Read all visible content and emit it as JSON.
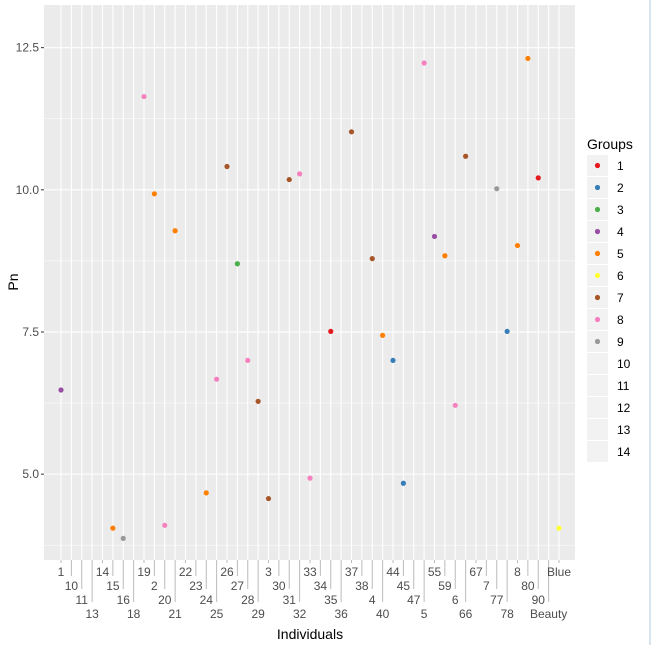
{
  "chart_data": {
    "type": "scatter",
    "title": "",
    "xlabel": "Individuals",
    "ylabel": "Pn",
    "ylim": [
      3.49,
      13.25
    ],
    "yticks": [
      5.0,
      7.5,
      10.0,
      12.5
    ],
    "ytick_labels": [
      "5.0",
      "7.5",
      "10.0",
      "12.5"
    ],
    "grid": true,
    "legend": {
      "title": "Groups",
      "placement": "right",
      "entries": [
        "1",
        "2",
        "3",
        "4",
        "5",
        "6",
        "7",
        "8",
        "9",
        "10",
        "11",
        "12",
        "13",
        "14"
      ]
    },
    "colors": {
      "1": "#E41A1C",
      "2": "#377EB8",
      "3": "#4DAF4A",
      "4": "#984EA3",
      "5": "#FF7F00",
      "6": "#FFFF33",
      "7": "#A65628",
      "8": "#F781BF",
      "9": "#999999"
    },
    "categories": [
      "1",
      "10",
      "11",
      "13",
      "14",
      "15",
      "16",
      "18",
      "19",
      "2",
      "20",
      "21",
      "22",
      "23",
      "24",
      "25",
      "26",
      "27",
      "28",
      "29",
      "3",
      "30",
      "31",
      "32",
      "33",
      "34",
      "35",
      "36",
      "37",
      "38",
      "4",
      "40",
      "44",
      "45",
      "47",
      "5",
      "55",
      "59",
      "6",
      "66",
      "67",
      "7",
      "77",
      "78",
      "8",
      "80",
      "90",
      "Beauty",
      "Blue"
    ],
    "points": [
      {
        "x": 0,
        "y": 6.48,
        "group": "4"
      },
      {
        "x": 5,
        "y": 4.05,
        "group": "5"
      },
      {
        "x": 6,
        "y": 3.87,
        "group": "9"
      },
      {
        "x": 8,
        "y": 11.64,
        "group": "8"
      },
      {
        "x": 9,
        "y": 9.93,
        "group": "5"
      },
      {
        "x": 10,
        "y": 4.1,
        "group": "8"
      },
      {
        "x": 11,
        "y": 9.28,
        "group": "5"
      },
      {
        "x": 14,
        "y": 4.67,
        "group": "5"
      },
      {
        "x": 15,
        "y": 6.67,
        "group": "8"
      },
      {
        "x": 16,
        "y": 10.41,
        "group": "7"
      },
      {
        "x": 17,
        "y": 8.7,
        "group": "3"
      },
      {
        "x": 18,
        "y": 7.0,
        "group": "8"
      },
      {
        "x": 19,
        "y": 6.28,
        "group": "7"
      },
      {
        "x": 20,
        "y": 4.57,
        "group": "7"
      },
      {
        "x": 22,
        "y": 10.18,
        "group": "7"
      },
      {
        "x": 23,
        "y": 10.28,
        "group": "8"
      },
      {
        "x": 24,
        "y": 4.93,
        "group": "8"
      },
      {
        "x": 26,
        "y": 7.51,
        "group": "1"
      },
      {
        "x": 28,
        "y": 11.02,
        "group": "7"
      },
      {
        "x": 30,
        "y": 8.79,
        "group": "7"
      },
      {
        "x": 31,
        "y": 7.44,
        "group": "5"
      },
      {
        "x": 32,
        "y": 7.0,
        "group": "2"
      },
      {
        "x": 33,
        "y": 4.84,
        "group": "2"
      },
      {
        "x": 35,
        "y": 12.23,
        "group": "8"
      },
      {
        "x": 36,
        "y": 9.18,
        "group": "4"
      },
      {
        "x": 37,
        "y": 8.84,
        "group": "5"
      },
      {
        "x": 38,
        "y": 6.21,
        "group": "8"
      },
      {
        "x": 39,
        "y": 10.59,
        "group": "7"
      },
      {
        "x": 42,
        "y": 10.02,
        "group": "9"
      },
      {
        "x": 43,
        "y": 7.51,
        "group": "2"
      },
      {
        "x": 44,
        "y": 9.02,
        "group": "5"
      },
      {
        "x": 45,
        "y": 12.31,
        "group": "5"
      },
      {
        "x": 46,
        "y": 10.21,
        "group": "1"
      },
      {
        "x": 48,
        "y": 4.05,
        "group": "6"
      }
    ]
  }
}
